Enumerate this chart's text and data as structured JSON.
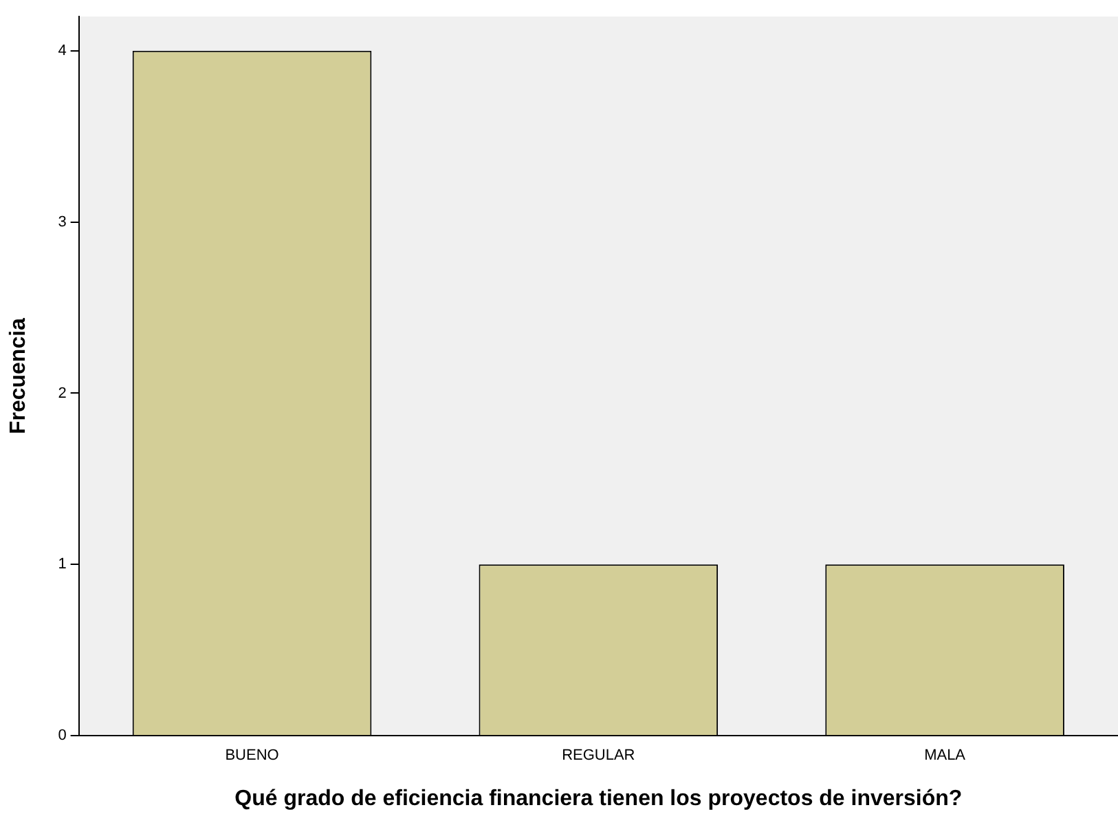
{
  "chart_data": {
    "type": "bar",
    "xlabel": "Qué grado de eficiencia financiera tienen los proyectos de inversión?",
    "ylabel": "Frecuencia",
    "categories": [
      "BUENO",
      "REGULAR",
      "MALA"
    ],
    "values": [
      4,
      1,
      1
    ],
    "color": "#d3ce97",
    "ylim": [
      0,
      4.2
    ],
    "yticks": [
      0,
      1,
      2,
      3,
      4
    ],
    "grid": false,
    "legend": false
  }
}
